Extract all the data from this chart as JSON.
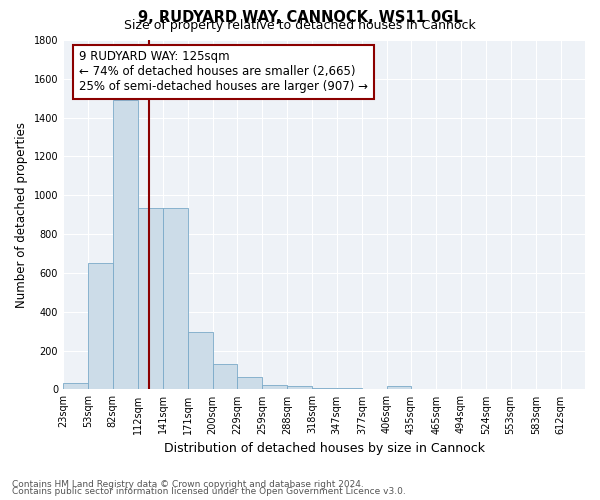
{
  "title1": "9, RUDYARD WAY, CANNOCK, WS11 0GL",
  "title2": "Size of property relative to detached houses in Cannock",
  "xlabel": "Distribution of detached houses by size in Cannock",
  "ylabel": "Number of detached properties",
  "footnote1": "Contains HM Land Registry data © Crown copyright and database right 2024.",
  "footnote2": "Contains public sector information licensed under the Open Government Licence v3.0.",
  "bar_edges": [
    23,
    53,
    82,
    112,
    141,
    171,
    200,
    229,
    259,
    288,
    318,
    347,
    377,
    406,
    435,
    465,
    494,
    524,
    553,
    583,
    612
  ],
  "bar_heights": [
    35,
    650,
    1490,
    935,
    935,
    295,
    130,
    65,
    22,
    18,
    8,
    5,
    3,
    20,
    0,
    0,
    0,
    0,
    0,
    0
  ],
  "bar_color": "#ccdce8",
  "bar_edge_color": "#7aaac8",
  "vline_x": 125,
  "vline_color": "#8b0000",
  "annotation_text_line1": "9 RUDYARD WAY: 125sqm",
  "annotation_text_line2": "← 74% of detached houses are smaller (2,665)",
  "annotation_text_line3": "25% of semi-detached houses are larger (907) →",
  "annotation_box_color": "#8b0000",
  "annotation_fontsize": 8.5,
  "ylim": [
    0,
    1800
  ],
  "plot_bg_color": "#eef2f7",
  "tick_labels": [
    "23sqm",
    "53sqm",
    "82sqm",
    "112sqm",
    "141sqm",
    "171sqm",
    "200sqm",
    "229sqm",
    "259sqm",
    "288sqm",
    "318sqm",
    "347sqm",
    "377sqm",
    "406sqm",
    "435sqm",
    "465sqm",
    "494sqm",
    "524sqm",
    "553sqm",
    "583sqm",
    "612sqm"
  ]
}
